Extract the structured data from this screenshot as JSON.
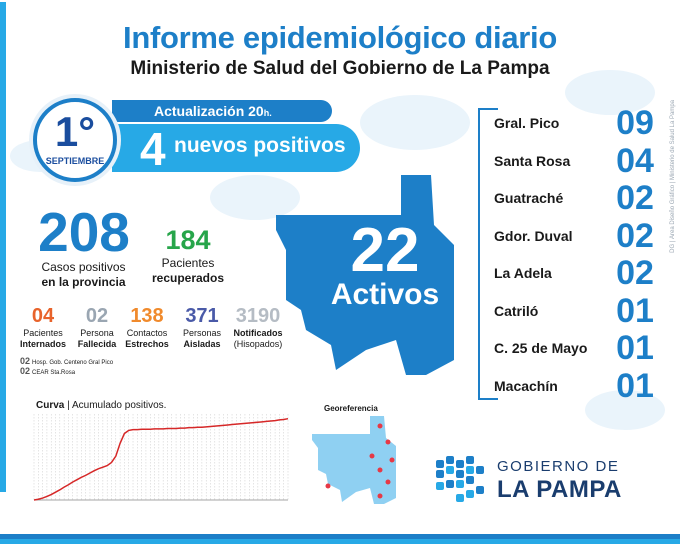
{
  "header": {
    "title": "Informe epidemiológico diario",
    "subtitle": "Ministerio de Salud del Gobierno de La Pampa",
    "credit": "DG | Área Diseño Gráfico | Ministerio de Salud La Pampa"
  },
  "date": {
    "day": "1°",
    "month": "SEPTIEMBRE"
  },
  "update": {
    "label": "Actualización 20",
    "suffix": "h.",
    "new_positive_count": "4",
    "new_positive_label": "nuevos positivos"
  },
  "totals": {
    "cases": "208",
    "cases_label_1": "Casos positivos",
    "cases_label_2": "en la provincia",
    "recovered": "184",
    "recovered_label_1": "Pacientes",
    "recovered_label_2": "recuperados"
  },
  "stats": [
    {
      "value": "04",
      "label_1": "Pacientes",
      "label_2": "Internados",
      "color": "#e8632b"
    },
    {
      "value": "02",
      "label_1": "Persona",
      "label_2": "Fallecida",
      "color": "#9aa6b2"
    },
    {
      "value": "138",
      "label_1": "Contactos",
      "label_2": "Estrechos",
      "color": "#f08a2c"
    },
    {
      "value": "371",
      "label_1": "Personas",
      "label_2": "Aisladas",
      "color": "#4a5aa8"
    },
    {
      "value": "3190",
      "label_1": "Notificados",
      "label_2": "(Hisopados)",
      "color": "#b5bcc4"
    }
  ],
  "notes": [
    {
      "num": "02",
      "text": "Hosp. Gob. Centeno Gral Pico"
    },
    {
      "num": "02",
      "text": "CEAR Sta.Rosa"
    }
  ],
  "active": {
    "count": "22",
    "label": "Activos"
  },
  "departments": [
    {
      "name": "Gral. Pico",
      "count": "09"
    },
    {
      "name": "Santa Rosa",
      "count": "04"
    },
    {
      "name": "Guatraché",
      "count": "02"
    },
    {
      "name": "Gdor. Duval",
      "count": "02"
    },
    {
      "name": "La Adela",
      "count": "02"
    },
    {
      "name": "Catriló",
      "count": "01"
    },
    {
      "name": "C. 25 de Mayo",
      "count": "01"
    },
    {
      "name": "Macachín",
      "count": "01"
    }
  ],
  "chart_data": {
    "type": "line",
    "title": "Curva",
    "subtitle": "Acumulado positivos.",
    "x": [
      1,
      2,
      3,
      4,
      5,
      6,
      7,
      8,
      9,
      10,
      11,
      12,
      13,
      14,
      15,
      16,
      17,
      18,
      19,
      20,
      21,
      22,
      23,
      24,
      25,
      26,
      27,
      28,
      29,
      30,
      31,
      32,
      33,
      34,
      35,
      36,
      37,
      38,
      39,
      40,
      41,
      42,
      43,
      44,
      45,
      46,
      47,
      48,
      49,
      50,
      51,
      52,
      53,
      54,
      55,
      56,
      57,
      58,
      59,
      60
    ],
    "series": [
      {
        "values": [
          0,
          2,
          5,
          9,
          14,
          20,
          26,
          33,
          39,
          46,
          52,
          58,
          63,
          69,
          75,
          80,
          84,
          88,
          96,
          112,
          145,
          170,
          178,
          180,
          180,
          181,
          181,
          181,
          182,
          182,
          182,
          183,
          183,
          183,
          184,
          184,
          185,
          185,
          186,
          186,
          187,
          188,
          189,
          190,
          191,
          192,
          193,
          194,
          195,
          196,
          197,
          198,
          199,
          200,
          201,
          202,
          203,
          205,
          206,
          208
        ]
      }
    ],
    "ylim": [
      0,
      220
    ],
    "grid": true,
    "color": "#d62828"
  },
  "georef": {
    "title": "Georeferencia"
  },
  "logo": {
    "line_1": "GOBIERNO DE",
    "line_2": "LA PAMPA"
  },
  "colors": {
    "primary": "#1d7fc8",
    "secondary": "#27a9e6",
    "recovered": "#27a54a",
    "dot": "#e63946"
  }
}
